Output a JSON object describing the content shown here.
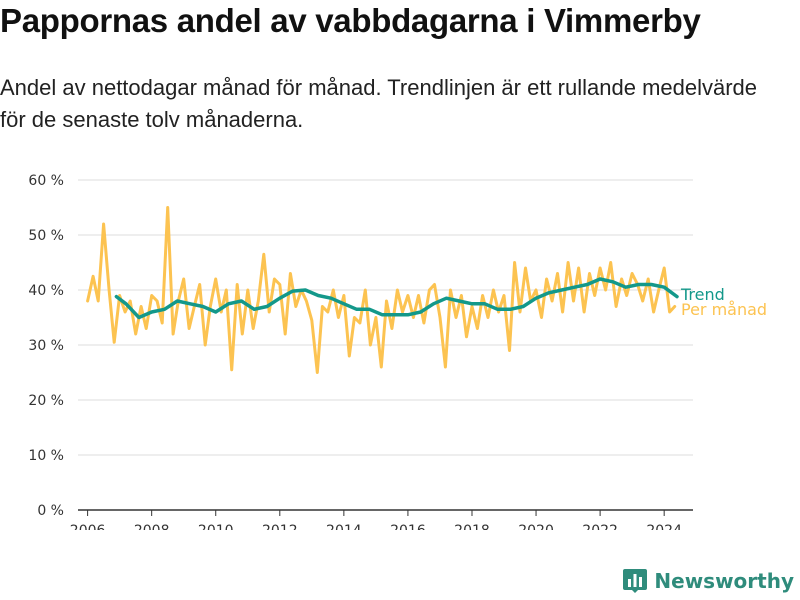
{
  "header": {
    "title": "Pappornas andel av vabbdagarna i Vimmerby",
    "subtitle": "Andel av nettodagar månad för månad. Trendlinjen är ett rullande medelvärde för de senaste tolv månaderna."
  },
  "brand": {
    "name": "Newsworthy",
    "icon": "bar-chart-logo-icon"
  },
  "colors": {
    "monthly": "#FCC351",
    "trend": "#13988A",
    "grid": "#dddddd",
    "axis": "#333333"
  },
  "chart_data": {
    "type": "line",
    "title": "Pappornas andel av vabbdagarna i Vimmerby",
    "subtitle": "Andel av nettodagar månad för månad. Trendlinjen är ett rullande medelvärde för de senaste tolv månaderna.",
    "x_unit": "year (decimal)",
    "y_unit": "percent",
    "xlim": [
      2006,
      2024.5
    ],
    "ylim": [
      0,
      60
    ],
    "x_ticks": [
      2006,
      2008,
      2010,
      2012,
      2014,
      2016,
      2018,
      2020,
      2022,
      2024
    ],
    "x_tick_labels": [
      "2006",
      "2008",
      "2010",
      "2012",
      "2014",
      "2016",
      "2018",
      "2020",
      "2022",
      "2024"
    ],
    "y_ticks": [
      0,
      10,
      20,
      30,
      40,
      50,
      60
    ],
    "y_tick_labels": [
      "0 %",
      "10 %",
      "20 %",
      "30 %",
      "40 %",
      "50 %",
      "60 %"
    ],
    "grid": "horizontal",
    "legend": "direct labels at right end of lines",
    "series": [
      {
        "name": "Trend",
        "color": "#13988A",
        "x": [
          2006.9,
          2007.2,
          2007.6,
          2008.0,
          2008.4,
          2008.8,
          2009.2,
          2009.6,
          2010.0,
          2010.4,
          2010.8,
          2011.2,
          2011.6,
          2012.0,
          2012.4,
          2012.8,
          2013.2,
          2013.6,
          2014.0,
          2014.4,
          2014.8,
          2015.2,
          2015.6,
          2016.0,
          2016.4,
          2016.8,
          2017.2,
          2017.6,
          2018.0,
          2018.4,
          2018.8,
          2019.2,
          2019.6,
          2020.0,
          2020.4,
          2020.8,
          2021.2,
          2021.6,
          2022.0,
          2022.4,
          2022.8,
          2023.2,
          2023.6,
          2024.0,
          2024.4
        ],
        "y": [
          38.8,
          37.5,
          35.0,
          36.0,
          36.5,
          38.0,
          37.5,
          37.0,
          36.0,
          37.5,
          38.0,
          36.5,
          37.0,
          38.5,
          39.8,
          40.0,
          39.0,
          38.5,
          37.5,
          36.5,
          36.5,
          35.5,
          35.5,
          35.5,
          36.0,
          37.5,
          38.5,
          38.0,
          37.5,
          37.5,
          36.5,
          36.5,
          37.0,
          38.5,
          39.5,
          40.0,
          40.5,
          41.0,
          42.0,
          41.5,
          40.5,
          41.0,
          41.0,
          40.5,
          38.8
        ]
      },
      {
        "name": "Per månad",
        "color": "#FCC351",
        "x": [
          2006.0,
          2006.17,
          2006.33,
          2006.5,
          2006.67,
          2006.83,
          2007.0,
          2007.17,
          2007.33,
          2007.5,
          2007.67,
          2007.83,
          2008.0,
          2008.17,
          2008.33,
          2008.5,
          2008.67,
          2008.83,
          2009.0,
          2009.17,
          2009.33,
          2009.5,
          2009.67,
          2009.83,
          2010.0,
          2010.17,
          2010.33,
          2010.5,
          2010.67,
          2010.83,
          2011.0,
          2011.17,
          2011.33,
          2011.5,
          2011.67,
          2011.83,
          2012.0,
          2012.17,
          2012.33,
          2012.5,
          2012.67,
          2012.83,
          2013.0,
          2013.17,
          2013.33,
          2013.5,
          2013.67,
          2013.83,
          2014.0,
          2014.17,
          2014.33,
          2014.5,
          2014.67,
          2014.83,
          2015.0,
          2015.17,
          2015.33,
          2015.5,
          2015.67,
          2015.83,
          2016.0,
          2016.17,
          2016.33,
          2016.5,
          2016.67,
          2016.83,
          2017.0,
          2017.17,
          2017.33,
          2017.5,
          2017.67,
          2017.83,
          2018.0,
          2018.17,
          2018.33,
          2018.5,
          2018.67,
          2018.83,
          2019.0,
          2019.17,
          2019.33,
          2019.5,
          2019.67,
          2019.83,
          2020.0,
          2020.17,
          2020.33,
          2020.5,
          2020.67,
          2020.83,
          2021.0,
          2021.17,
          2021.33,
          2021.5,
          2021.67,
          2021.83,
          2022.0,
          2022.17,
          2022.33,
          2022.5,
          2022.67,
          2022.83,
          2023.0,
          2023.17,
          2023.33,
          2023.5,
          2023.67,
          2023.83,
          2024.0,
          2024.17,
          2024.33
        ],
        "y": [
          38,
          42.5,
          38,
          52,
          40,
          30.5,
          39,
          36,
          38,
          32,
          37,
          33,
          39,
          38,
          34,
          55,
          32,
          38,
          42,
          33,
          37,
          41,
          30,
          37,
          42,
          36,
          40,
          25.5,
          41,
          32,
          40,
          33,
          38,
          46.5,
          36,
          42,
          41,
          32,
          43,
          37,
          40,
          38,
          34.5,
          25,
          37,
          36,
          40,
          35,
          39,
          28,
          35,
          34,
          40,
          30,
          35,
          26,
          38,
          33,
          40,
          36,
          39,
          35,
          39,
          34,
          40,
          41,
          35,
          26,
          40,
          35,
          39,
          31.5,
          37,
          33,
          39,
          35,
          40,
          36,
          39,
          29,
          45,
          36,
          44,
          38,
          40,
          35,
          42,
          38,
          43,
          36,
          45,
          38,
          44,
          36,
          43,
          39,
          44,
          40,
          45,
          37,
          42,
          39,
          43,
          41,
          38,
          42,
          36,
          40,
          44,
          36,
          37
        ]
      }
    ]
  }
}
